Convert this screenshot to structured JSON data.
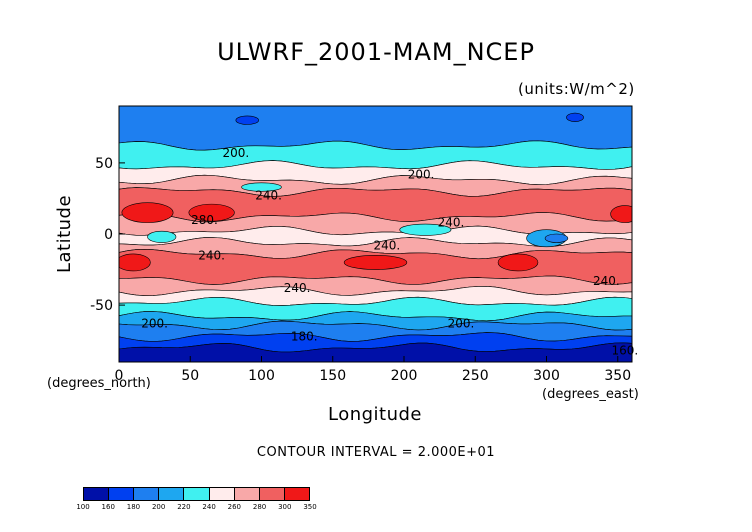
{
  "chart_data": {
    "type": "heatmap",
    "title": "ULWRF_2001-MAM_NCEP",
    "units": "(units:W/m^2)",
    "xlabel": "Longitude",
    "ylabel": "Latitude",
    "x_units": "(degrees_east)",
    "y_units": "(degrees_north)",
    "xlim": [
      0,
      360
    ],
    "ylim": [
      -90,
      90
    ],
    "x_ticks": [
      "0",
      "50",
      "100",
      "150",
      "200",
      "250",
      "300",
      "350"
    ],
    "y_ticks": [
      "50",
      "0",
      "-50"
    ],
    "contour_interval": "CONTOUR INTERVAL = 2.000E+01",
    "contour_labels": [
      {
        "text": "200.",
        "lon": 82,
        "lat": 57
      },
      {
        "text": "200.",
        "lon": 212,
        "lat": 42
      },
      {
        "text": "240.",
        "lon": 105,
        "lat": 27
      },
      {
        "text": "280.",
        "lon": 60,
        "lat": 10
      },
      {
        "text": "240.",
        "lon": 233,
        "lat": 8
      },
      {
        "text": "240.",
        "lon": 188,
        "lat": -8
      },
      {
        "text": "240.",
        "lon": 65,
        "lat": -15
      },
      {
        "text": "240.",
        "lon": 342,
        "lat": -33
      },
      {
        "text": "240.",
        "lon": 125,
        "lat": -38
      },
      {
        "text": "200.",
        "lon": 25,
        "lat": -63
      },
      {
        "text": "200.",
        "lon": 240,
        "lat": -63
      },
      {
        "text": "180.",
        "lon": 130,
        "lat": -72
      },
      {
        "text": "160.",
        "lon": 355,
        "lat": -82
      }
    ],
    "legend_levels": [
      "100",
      "160",
      "180",
      "200",
      "220",
      "240",
      "260",
      "280",
      "300",
      "350"
    ],
    "legend_colors": [
      "#0010a8",
      "#0040f0",
      "#1e7ff0",
      "#1ea7f0",
      "#40f0f0",
      "#ffecec",
      "#f8a8a8",
      "#f06060",
      "#f01818"
    ]
  }
}
